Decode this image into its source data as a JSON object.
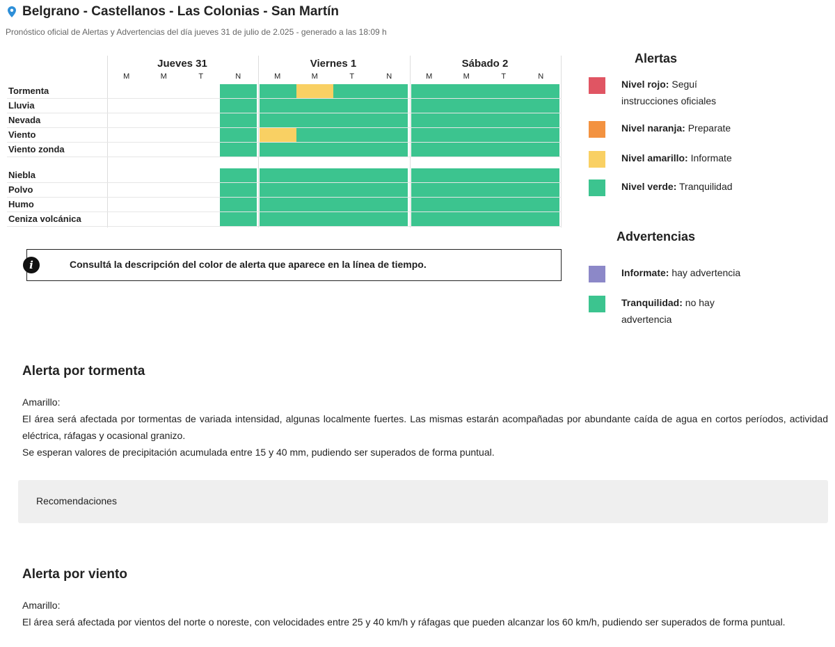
{
  "header": {
    "title": "Belgrano - Castellanos - Las Colonias - San Martín",
    "subtitle": "Pronóstico oficial de Alertas y Advertencias del día jueves 31 de julio de 2.025 - generado a las 18:09 h"
  },
  "grid": {
    "days": [
      {
        "name": "Jueves 31",
        "periods": [
          "M",
          "M",
          "T",
          "N"
        ]
      },
      {
        "name": "Viernes 1",
        "periods": [
          "M",
          "M",
          "T",
          "N"
        ]
      },
      {
        "name": "Sábado 2",
        "periods": [
          "M",
          "M",
          "T",
          "N"
        ]
      }
    ],
    "groups": [
      {
        "rows": [
          {
            "label": "Tormenta",
            "cells": [
              null,
              null,
              null,
              "#3cc48f",
              "#3cc48f",
              "#f9d063",
              "#3cc48f",
              "#3cc48f",
              "#3cc48f",
              "#3cc48f",
              "#3cc48f",
              "#3cc48f"
            ]
          },
          {
            "label": "Lluvia",
            "cells": [
              null,
              null,
              null,
              "#3cc48f",
              "#3cc48f",
              "#3cc48f",
              "#3cc48f",
              "#3cc48f",
              "#3cc48f",
              "#3cc48f",
              "#3cc48f",
              "#3cc48f"
            ]
          },
          {
            "label": "Nevada",
            "cells": [
              null,
              null,
              null,
              "#3cc48f",
              "#3cc48f",
              "#3cc48f",
              "#3cc48f",
              "#3cc48f",
              "#3cc48f",
              "#3cc48f",
              "#3cc48f",
              "#3cc48f"
            ]
          },
          {
            "label": "Viento",
            "cells": [
              null,
              null,
              null,
              "#3cc48f",
              "#f9d063",
              "#3cc48f",
              "#3cc48f",
              "#3cc48f",
              "#3cc48f",
              "#3cc48f",
              "#3cc48f",
              "#3cc48f"
            ]
          },
          {
            "label": "Viento zonda",
            "cells": [
              null,
              null,
              null,
              "#3cc48f",
              "#3cc48f",
              "#3cc48f",
              "#3cc48f",
              "#3cc48f",
              "#3cc48f",
              "#3cc48f",
              "#3cc48f",
              "#3cc48f"
            ]
          }
        ]
      },
      {
        "rows": [
          {
            "label": "Niebla",
            "cells": [
              null,
              null,
              null,
              "#3cc48f",
              "#3cc48f",
              "#3cc48f",
              "#3cc48f",
              "#3cc48f",
              "#3cc48f",
              "#3cc48f",
              "#3cc48f",
              "#3cc48f"
            ]
          },
          {
            "label": "Polvo",
            "cells": [
              null,
              null,
              null,
              "#3cc48f",
              "#3cc48f",
              "#3cc48f",
              "#3cc48f",
              "#3cc48f",
              "#3cc48f",
              "#3cc48f",
              "#3cc48f",
              "#3cc48f"
            ]
          },
          {
            "label": "Humo",
            "cells": [
              null,
              null,
              null,
              "#3cc48f",
              "#3cc48f",
              "#3cc48f",
              "#3cc48f",
              "#3cc48f",
              "#3cc48f",
              "#3cc48f",
              "#3cc48f",
              "#3cc48f"
            ]
          },
          {
            "label": "Ceniza volcánica",
            "cells": [
              null,
              null,
              null,
              "#3cc48f",
              "#3cc48f",
              "#3cc48f",
              "#3cc48f",
              "#3cc48f",
              "#3cc48f",
              "#3cc48f",
              "#3cc48f",
              "#3cc48f"
            ]
          }
        ]
      }
    ]
  },
  "info": "Consultá la descripción del color de alerta que aparece en la línea de tiempo.",
  "legends": [
    {
      "title": "Alertas",
      "items": [
        {
          "color": "#e05563",
          "label": "Nivel rojo:",
          "text": "Seguí instrucciones oficiales"
        },
        {
          "color": "#f39240",
          "label": "Nivel naranja:",
          "text": "Preparate"
        },
        {
          "color": "#f9d063",
          "label": "Nivel amarillo:",
          "text": "Informate"
        },
        {
          "color": "#3cc48f",
          "label": "Nivel verde:",
          "text": "Tranquilidad"
        }
      ]
    },
    {
      "title": "Advertencias",
      "items": [
        {
          "color": "#8c88c8",
          "label": "Informate:",
          "text": "hay advertencia"
        },
        {
          "color": "#3cc48f",
          "label": "Tranquilidad:",
          "text": "no hay advertencia"
        }
      ]
    }
  ],
  "sections": [
    {
      "title": "Alerta por tormenta",
      "level": "Amarillo:",
      "paragraphs": [
        "El área será afectada por tormentas de variada intensidad, algunas localmente fuertes. Las mismas estarán acompañadas por abundante caída de agua en cortos períodos, actividad eléctrica, ráfagas y ocasional granizo.",
        "Se esperan valores de precipitación acumulada entre 15 y 40 mm, pudiendo ser superados de forma puntual."
      ],
      "recommendations": "Recomendaciones"
    },
    {
      "title": "Alerta por viento",
      "level": "Amarillo:",
      "paragraphs": [
        "El área será afectada por vientos del norte o noreste, con velocidades entre 25 y 40 km/h y ráfagas que pueden alcanzar los 60 km/h, pudiendo ser superados de forma puntual."
      ]
    }
  ]
}
